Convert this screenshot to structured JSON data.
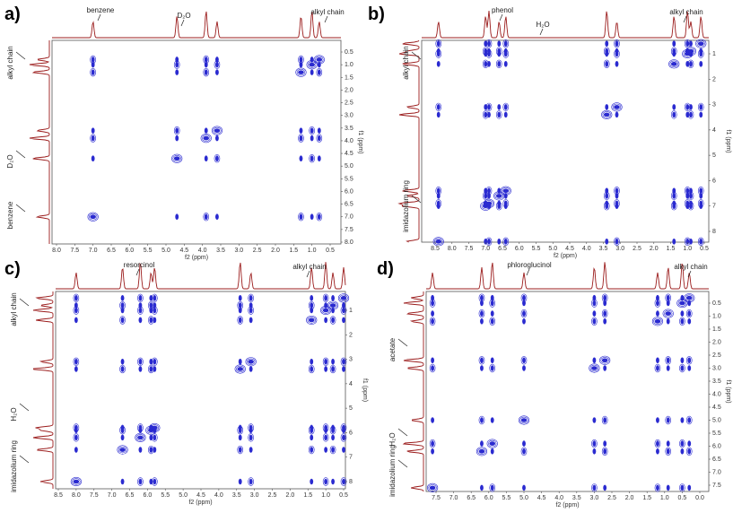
{
  "panels": [
    {
      "label": "a)",
      "top_labels": [
        "benzene",
        "D₂O",
        "alkyl chain"
      ],
      "side_labels": [
        "alkyl chain",
        "D₂O",
        "benzene"
      ],
      "xticks": [
        "8.0",
        "7.5",
        "7.0",
        "6.5",
        "6.0",
        "5.5",
        "5.0",
        "4.5",
        "4.0",
        "3.5",
        "3.0",
        "2.5",
        "2.0",
        "1.5",
        "1.0",
        "0.5"
      ],
      "yticks": [
        "0.5",
        "1.0",
        "1.5",
        "2.0",
        "2.5",
        "3.0",
        "3.5",
        "4.0",
        "4.5",
        "5.0",
        "5.5",
        "6.0",
        "6.5",
        "7.0",
        "7.5",
        "8.0"
      ],
      "x_title": "f2 (ppm)",
      "y_title": "f1 (ppm)"
    },
    {
      "label": "b)",
      "top_labels": [
        "phenol",
        "H₂O",
        "alkyl chain"
      ],
      "side_labels": [
        "alkyl chain",
        "imidazolium ring"
      ],
      "xticks": [
        "8.5",
        "8.0",
        "7.5",
        "7.0",
        "6.5",
        "6.0",
        "5.5",
        "5.0",
        "4.5",
        "4.0",
        "3.5",
        "3.0",
        "2.5",
        "2.0",
        "1.5",
        "1.0",
        "0.5"
      ],
      "yticks": [
        "1",
        "2",
        "3",
        "4",
        "5",
        "6",
        "7",
        "8"
      ],
      "x_title": "f2 (ppm)",
      "y_title": "f1 (ppm)"
    },
    {
      "label": "c)",
      "top_labels": [
        "resorcinol",
        "alkyl chain"
      ],
      "side_labels": [
        "alkyl chain",
        "H₂O",
        "imidazolium ring"
      ],
      "xticks": [
        "8.5",
        "8.0",
        "7.5",
        "7.0",
        "6.5",
        "6.0",
        "5.5",
        "5.0",
        "4.5",
        "4.0",
        "3.5",
        "3.0",
        "2.5",
        "2.0",
        "1.5",
        "1.0",
        "0.5"
      ],
      "yticks": [
        "1",
        "2",
        "3",
        "4",
        "5",
        "6",
        "7",
        "8"
      ],
      "x_title": "f2 (ppm)",
      "y_title": "f1 (ppm)"
    },
    {
      "label": "d)",
      "top_labels": [
        "phloroglucinol",
        "alkyl chain"
      ],
      "side_labels": [
        "acetate",
        "H₂O",
        "imidazolium ring"
      ],
      "xticks": [
        "7.5",
        "7.0",
        "6.5",
        "6.0",
        "5.5",
        "5.0",
        "4.5",
        "4.0",
        "3.5",
        "3.0",
        "2.5",
        "2.0",
        "1.5",
        "1.0",
        "0.5",
        "0.0"
      ],
      "yticks": [
        "0.5",
        "1.0",
        "1.5",
        "2.0",
        "2.5",
        "3.0",
        "3.5",
        "4.0",
        "4.5",
        "5.0",
        "5.5",
        "6.0",
        "6.5",
        "7.0",
        "7.5"
      ],
      "x_title": "f2 (ppm)",
      "y_title": "f1 (ppm)"
    }
  ]
}
